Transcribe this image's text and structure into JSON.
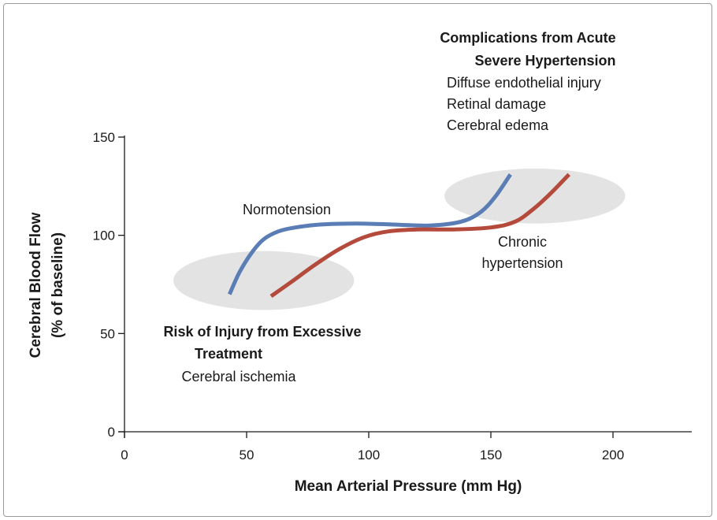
{
  "chart_data": {
    "type": "line",
    "xlabel": "Mean Arterial Pressure (mm Hg)",
    "ylabel_line1": "Cerebral Blood Flow",
    "ylabel_line2": "(% of baseline)",
    "xlim": [
      0,
      230
    ],
    "ylim": [
      0,
      150
    ],
    "xticks": [
      0,
      50,
      100,
      150,
      200
    ],
    "yticks": [
      0,
      50,
      100,
      150
    ],
    "xtick_labels": [
      "0",
      "50",
      "100",
      "150",
      "200"
    ],
    "ytick_labels": [
      "0",
      "50",
      "100",
      "150"
    ],
    "grid": false,
    "series": [
      {
        "name": "Normotension",
        "color": "#5a7db5",
        "x": [
          43,
          47,
          52,
          57,
          63,
          70,
          80,
          95,
          110,
          125,
          138,
          146,
          152,
          158
        ],
        "y": [
          70,
          81,
          91,
          98,
          102,
          104,
          105.5,
          106,
          105.5,
          105,
          107,
          112,
          120,
          131
        ]
      },
      {
        "name": "Chronic hypertension",
        "color": "#b44a3c",
        "x": [
          60,
          68,
          78,
          88,
          98,
          108,
          120,
          135,
          150,
          160,
          168,
          175,
          182
        ],
        "y": [
          69,
          76,
          85,
          93,
          99,
          102,
          103,
          103,
          104,
          107,
          114,
          122,
          131
        ]
      }
    ],
    "regions": [
      {
        "name": "low-risk-zone",
        "cx": 57,
        "cy": 77,
        "rx": 37,
        "ry": 15,
        "color": "#e3e3e3"
      },
      {
        "name": "high-risk-zone",
        "cx": 168,
        "cy": 120,
        "rx": 37,
        "ry": 14,
        "color": "#e3e3e3"
      }
    ],
    "annotations": {
      "normotension": "Normotension",
      "chronic_line1": "Chronic",
      "chronic_line2": "hypertension",
      "complications_title_line1": "Complications from Acute",
      "complications_title_line2": "Severe Hypertension",
      "complications_items": [
        "Diffuse endothelial injury",
        "Retinal damage",
        "Cerebral edema"
      ],
      "risk_title_line1": "Risk of Injury from Excessive",
      "risk_title_line2": "Treatment",
      "risk_item": "Cerebral ischemia"
    }
  }
}
